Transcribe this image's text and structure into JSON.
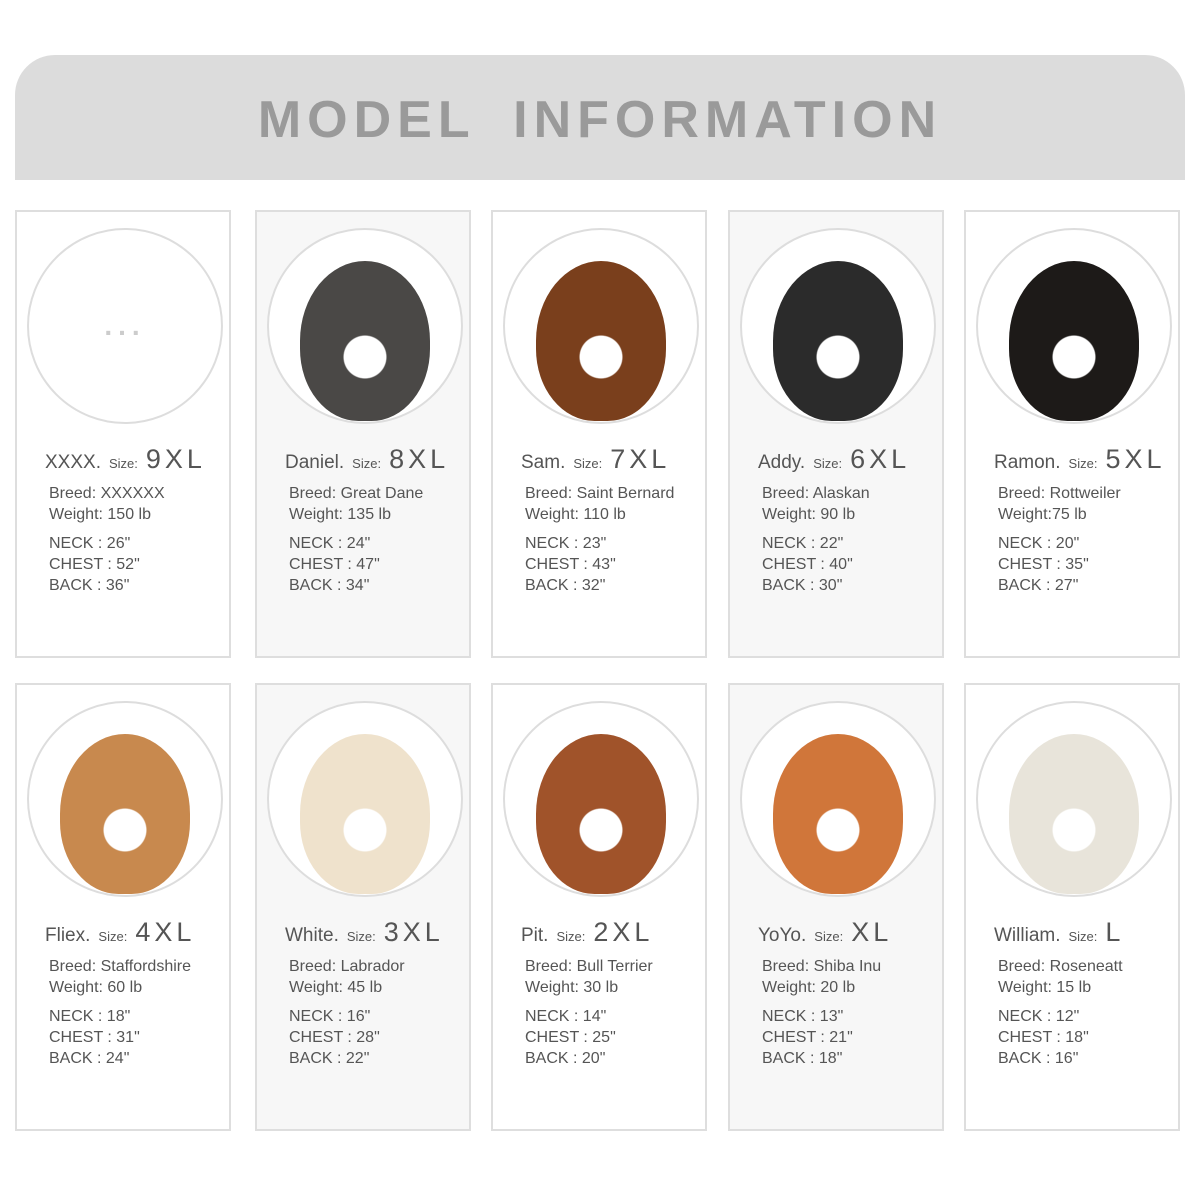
{
  "title": "MODEL  INFORMATION",
  "size_label": "Size:",
  "placeholder_photo": "...",
  "models": [
    {
      "name": "XXXX.",
      "size": "9XL",
      "breed": "Breed:  XXXXXX",
      "weight": "Weight: 150 lb",
      "neck": "NECK :  26\"",
      "chest": "CHEST :  52\"",
      "back": "BACK :  36\"",
      "color": ""
    },
    {
      "name": "Daniel.",
      "size": "8XL",
      "breed": "Breed:  Great Dane",
      "weight": "Weight: 135 lb",
      "neck": "NECK :  24\"",
      "chest": "CHEST :  47\"",
      "back": "BACK :  34\"",
      "color": "#4a4846"
    },
    {
      "name": "Sam.",
      "size": "7XL",
      "breed": "Breed:  Saint Bernard",
      "weight": "Weight: 110 lb",
      "neck": "NECK :  23\"",
      "chest": "CHEST :  43\"",
      "back": "BACK :  32\"",
      "color": "#7a3f1c"
    },
    {
      "name": "Addy.",
      "size": "6XL",
      "breed": "Breed:  Alaskan",
      "weight": "Weight: 90 lb",
      "neck": "NECK :  22\"",
      "chest": "CHEST :  40\"",
      "back": "BACK :  30\"",
      "color": "#2b2b2b"
    },
    {
      "name": "Ramon.",
      "size": "5XL",
      "breed": "Breed:  Rottweiler",
      "weight": "Weight:75 lb",
      "neck": "NECK :  20\"",
      "chest": "CHEST :  35\"",
      "back": "BACK :  27\"",
      "color": "#1d1a18"
    },
    {
      "name": "Fliex.",
      "size": "4XL",
      "breed": "Breed:  Staffordshire",
      "weight": "Weight: 60 lb",
      "neck": "NECK :  18\"",
      "chest": "CHEST :  31\"",
      "back": "BACK :  24\"",
      "color": "#c8894e"
    },
    {
      "name": "White.",
      "size": "3XL",
      "breed": "Breed:  Labrador",
      "weight": "Weight: 45 lb",
      "neck": "NECK :  16\"",
      "chest": "CHEST :  28\"",
      "back": "BACK :  22\"",
      "color": "#efe2cc"
    },
    {
      "name": "Pit.",
      "size": "2XL",
      "breed": "Breed:  Bull Terrier",
      "weight": "Weight: 30 lb",
      "neck": "NECK :  14\"",
      "chest": "CHEST :  25\"",
      "back": "BACK :  20\"",
      "color": "#a0532a"
    },
    {
      "name": "YoYo.",
      "size": "XL",
      "breed": "Breed:  Shiba Inu",
      "weight": "Weight: 20 lb",
      "neck": "NECK :  13\"",
      "chest": "CHEST :  21\"",
      "back": "BACK :  18\"",
      "color": "#d0763a"
    },
    {
      "name": "William.",
      "size": "L",
      "breed": "Breed:  Roseneatt",
      "weight": "Weight: 15 lb",
      "neck": "NECK :  12\"",
      "chest": "CHEST :  18\"",
      "back": "BACK :  16\"",
      "color": "#e8e4da"
    }
  ]
}
